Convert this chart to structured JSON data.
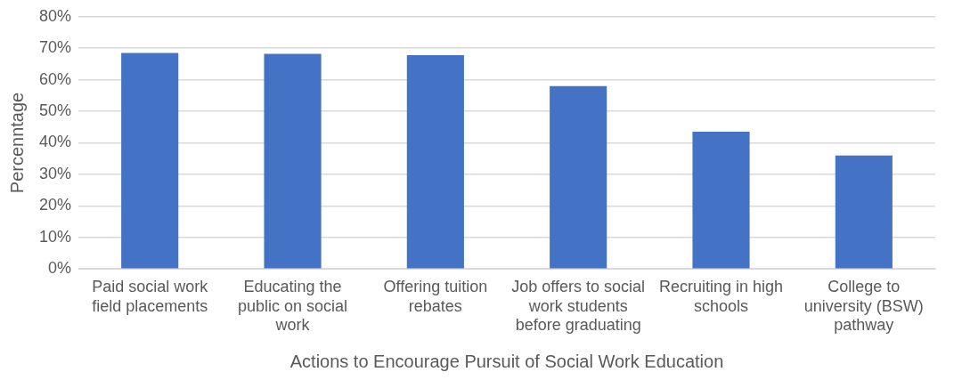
{
  "chart_data": {
    "type": "bar",
    "categories": [
      "Paid social work field placements",
      "Educating the public on social work",
      "Offering tuition rebates",
      "Job offers to social work students before graduating",
      "Recruiting in high schools",
      "College to university (BSW) pathway"
    ],
    "values": [
      68.5,
      68.2,
      67.8,
      58,
      43.5,
      36
    ],
    "color": "#4472c4",
    "xlabel": "Actions to Encourage Pursuit of Social Work Education",
    "ylabel": "Percenntage",
    "ylim": [
      0,
      80
    ],
    "yticks": [
      {
        "value": 0,
        "label": "0%"
      },
      {
        "value": 10,
        "label": "10%"
      },
      {
        "value": 20,
        "label": "20%"
      },
      {
        "value": 30,
        "label": "30%"
      },
      {
        "value": 40,
        "label": "40%"
      },
      {
        "value": 50,
        "label": "50%"
      },
      {
        "value": 60,
        "label": "60%"
      },
      {
        "value": 70,
        "label": "70%"
      },
      {
        "value": 80,
        "label": "80%"
      }
    ],
    "grid": "y"
  }
}
